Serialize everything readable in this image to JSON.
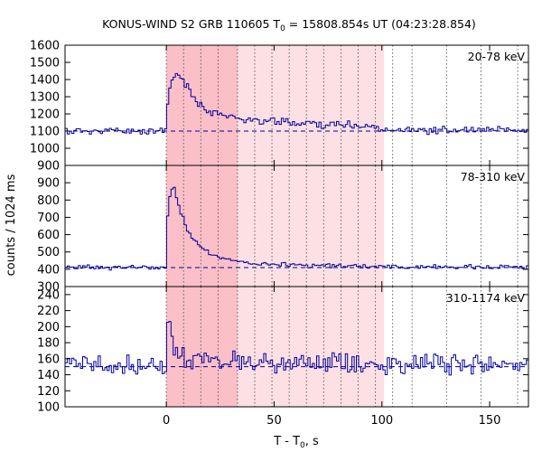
{
  "chart_data": {
    "type": "line",
    "title": "KONUS-WIND S2 GRB 110605 T",
    "title_sub": "0",
    "title_rest": " = 15808.854s UT (04:23:28.854)",
    "xlabel": "T - T",
    "xlabel_sub": "0",
    "xlabel_rest": ", s",
    "ylabel": "counts / 1024 ms",
    "xlim": [
      -47,
      168
    ],
    "x_ticks": [
      "0",
      "50",
      "100",
      "150"
    ],
    "x_tick_values": [
      0,
      50,
      100,
      150
    ],
    "colors": {
      "series": "#00009a",
      "shade": "#fde0e3",
      "shade_dark": "#fbbfc7",
      "grid": "#555555"
    },
    "shaded_interval_light": [
      0,
      101
    ],
    "shaded_interval_dark": [
      0,
      33
    ],
    "vertical_dotted_lines_x": [
      0,
      8,
      16,
      24,
      33,
      41,
      49,
      57,
      65,
      73,
      81,
      89,
      97,
      105,
      114,
      130,
      146,
      163
    ],
    "panels": [
      {
        "band": "20-78 keV",
        "ylim": [
          900,
          1600
        ],
        "y_ticks": [
          "900",
          "1000",
          "1100",
          "1200",
          "1300",
          "1400",
          "1500",
          "1600"
        ],
        "y_tick_values": [
          900,
          1000,
          1100,
          1200,
          1300,
          1400,
          1500,
          1600
        ],
        "background": 1100,
        "profile": [
          [
            -47,
            1100
          ],
          [
            0,
            1100
          ],
          [
            0.5,
            1240
          ],
          [
            2,
            1380
          ],
          [
            5,
            1440
          ],
          [
            8,
            1400
          ],
          [
            11,
            1320
          ],
          [
            15,
            1260
          ],
          [
            20,
            1215
          ],
          [
            30,
            1180
          ],
          [
            45,
            1160
          ],
          [
            60,
            1150
          ],
          [
            80,
            1135
          ],
          [
            100,
            1125
          ],
          [
            101,
            1108
          ],
          [
            130,
            1105
          ],
          [
            168,
            1102
          ]
        ],
        "noise_amp": 20,
        "seed": 11
      },
      {
        "band": "78-310 keV",
        "ylim": [
          300,
          1000
        ],
        "y_ticks": [
          "300",
          "400",
          "500",
          "600",
          "700",
          "800",
          "900"
        ],
        "y_tick_values": [
          300,
          400,
          500,
          600,
          700,
          800,
          900
        ],
        "background": 410,
        "profile": [
          [
            -47,
            410
          ],
          [
            0,
            410
          ],
          [
            0.5,
            700
          ],
          [
            2,
            850
          ],
          [
            4,
            860
          ],
          [
            6,
            760
          ],
          [
            9,
            650
          ],
          [
            12,
            580
          ],
          [
            16,
            530
          ],
          [
            20,
            490
          ],
          [
            26,
            465
          ],
          [
            35,
            445
          ],
          [
            50,
            430
          ],
          [
            70,
            420
          ],
          [
            100,
            415
          ],
          [
            168,
            412
          ]
        ],
        "noise_amp": 12,
        "seed": 23
      },
      {
        "band": "310-1174 keV",
        "ylim": [
          100,
          250
        ],
        "y_ticks": [
          "100",
          "120",
          "140",
          "160",
          "180",
          "200",
          "220",
          "240"
        ],
        "y_tick_values": [
          100,
          120,
          140,
          160,
          180,
          200,
          220,
          240
        ],
        "background": 150,
        "profile": [
          [
            -47,
            150
          ],
          [
            0,
            150
          ],
          [
            0.5,
            205
          ],
          [
            1.5,
            215
          ],
          [
            3,
            180
          ],
          [
            6,
            165
          ],
          [
            12,
            160
          ],
          [
            30,
            157
          ],
          [
            60,
            155
          ],
          [
            100,
            154
          ],
          [
            168,
            152
          ]
        ],
        "noise_amp": 11,
        "seed": 37
      }
    ]
  }
}
